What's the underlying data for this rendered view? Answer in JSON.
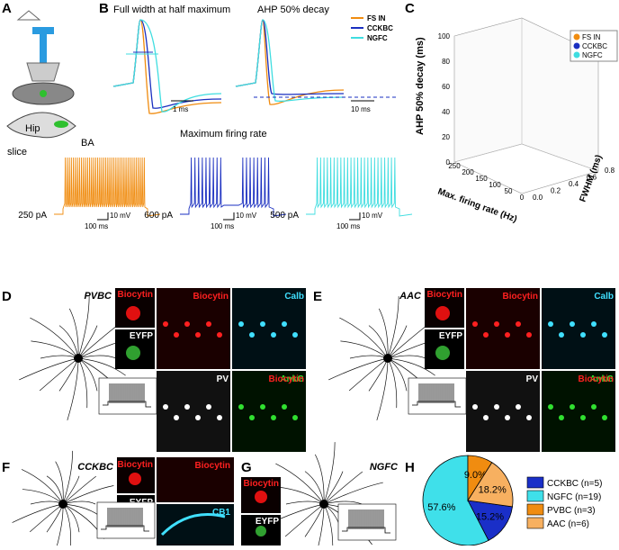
{
  "panel_labels": [
    "A",
    "B",
    "C",
    "D",
    "E",
    "F",
    "G",
    "H"
  ],
  "panel_a": {
    "labels": [
      "Hip",
      "BA",
      "slice"
    ]
  },
  "panel_b": {
    "titles": [
      "Full width at half maximum",
      "AHP 50% decay",
      "Maximum firing rate"
    ],
    "legend": [
      {
        "name": "FS IN",
        "color": "#f08c10"
      },
      {
        "name": "CCKBC",
        "color": "#1a2fc0"
      },
      {
        "name": "NGFC",
        "color": "#3fdde0"
      }
    ],
    "scale_labels": [
      "1 ms",
      "10 ms"
    ],
    "firing": [
      {
        "current": "250 pA",
        "time": "100 ms",
        "voltage": "10 mV"
      },
      {
        "current": "600 pA",
        "time": "100 ms",
        "voltage": "10 mV"
      },
      {
        "current": "500 pA",
        "time": "100 ms",
        "voltage": "10 mV"
      }
    ]
  },
  "panel_c": {
    "zlabel": "AHP 50% decay (ms)",
    "xlabel": "Max. firing rate (Hz)",
    "ylabel": "FWHM (ms)",
    "zticks": [
      0,
      20,
      40,
      60,
      80,
      100
    ],
    "xticks": [
      0,
      50,
      100,
      150,
      200,
      250
    ],
    "yticks": [
      {
        "value": 0,
        "label": "0.0"
      },
      {
        "value": 0.2,
        "label": "0.2"
      },
      {
        "value": 0.4,
        "label": "0.4"
      },
      {
        "value": 0.6,
        "label": "0.6"
      },
      {
        "value": 0.8,
        "label": "0.8"
      }
    ],
    "legend": [
      "FS IN",
      "CCKBC",
      "NGFC"
    ]
  },
  "panel_d": {
    "title": "PVBC",
    "stains": [
      "Biocytin",
      "EYFP",
      "Biocytin",
      "Calb",
      "PV",
      "AnkG",
      "Biocytin"
    ]
  },
  "panel_e": {
    "title": "AAC",
    "stains": [
      "Biocytin",
      "EYFP",
      "Biocytin",
      "Calb",
      "PV",
      "AnkG",
      "Biocytin"
    ]
  },
  "panel_f": {
    "title": "CCKBC",
    "stains": [
      "Biocytin",
      "EYFP",
      "Biocytin",
      "CB1"
    ]
  },
  "panel_g": {
    "title": "NGFC",
    "stains": [
      "Biocytin",
      "EYFP"
    ]
  },
  "panel_h": {
    "type": "pie",
    "categories": [
      "CCKBC (n=5)",
      "NGFC (n=19)",
      "PVBC (n=3)",
      "AAC (n=6)"
    ],
    "values": [
      15.2,
      57.6,
      9.0,
      18.2
    ],
    "value_labels": [
      "15.2%",
      "57.6%",
      "9.0%",
      "18.2%"
    ],
    "colors": [
      "#1a2fc8",
      "#3fe0ea",
      "#f08c10",
      "#f7b060"
    ]
  }
}
